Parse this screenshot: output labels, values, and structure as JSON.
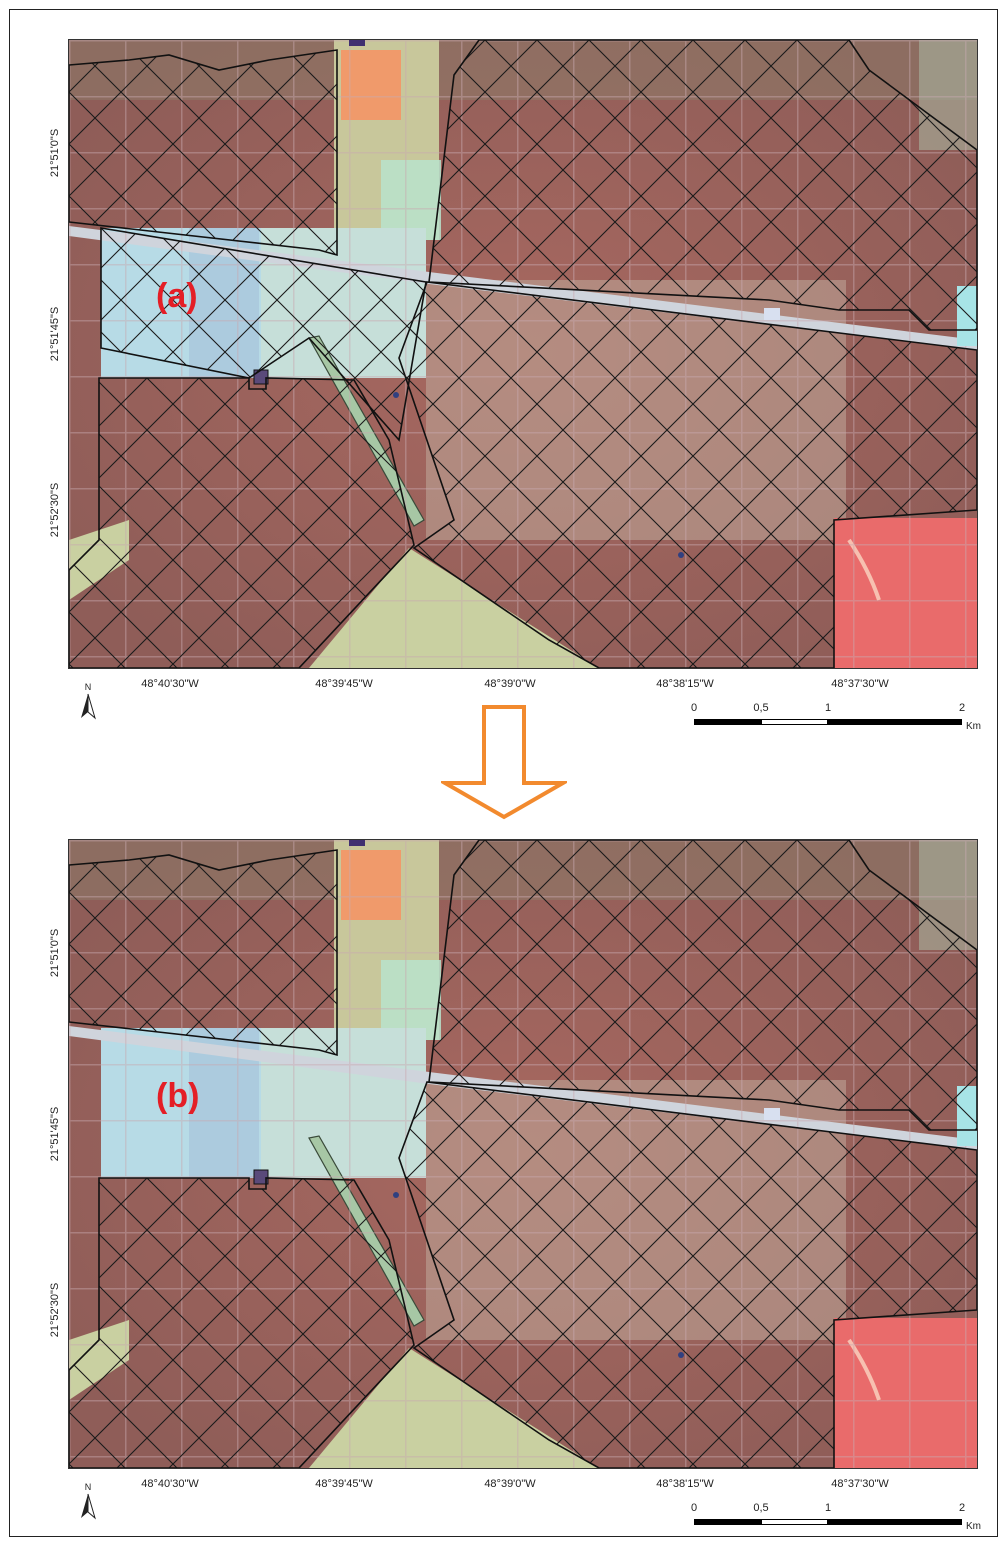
{
  "panels": [
    {
      "label": "(a)"
    },
    {
      "label": "(b)"
    }
  ],
  "latitude_labels": [
    "21°51'0\"S",
    "21°51'45\"S",
    "21°52'30\"S"
  ],
  "longitude_labels": [
    "48°40'30\"W",
    "48°39'45\"W",
    "48°39'0\"W",
    "48°38'15\"W",
    "48°37'30\"W"
  ],
  "north_arrow": {
    "letter": "N",
    "icon": "north-arrow-icon"
  },
  "scale_bar": {
    "ticks": [
      "0",
      "0,5",
      "1",
      "2"
    ],
    "unit": "Km"
  },
  "colors": {
    "label": "#e41e26",
    "arrow": "#f28a2e",
    "field_red": "#9a625c",
    "bare_soil": "#cfe0cf",
    "water_cyan": "#b7dbe6",
    "bright_red": "#e96b6b"
  }
}
